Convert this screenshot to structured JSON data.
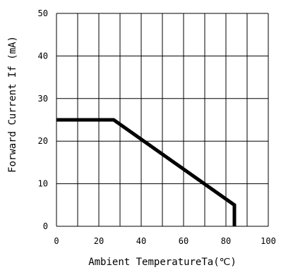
{
  "chart_data": {
    "type": "line",
    "title": "",
    "xlabel": "Ambient TemperatureTa(℃)",
    "ylabel": "Forward Current If (mA)",
    "xlim": [
      0,
      100
    ],
    "ylim": [
      0,
      50
    ],
    "x_ticks": [
      0,
      20,
      40,
      60,
      80,
      100
    ],
    "y_ticks": [
      0,
      10,
      20,
      30,
      40,
      50
    ],
    "grid": true,
    "series": [
      {
        "x": [
          0,
          27,
          84,
          84
        ],
        "y": [
          25,
          25,
          5,
          0
        ]
      }
    ],
    "colors": {
      "line": "#000000",
      "grid": "#000000",
      "background": "#ffffff"
    }
  }
}
